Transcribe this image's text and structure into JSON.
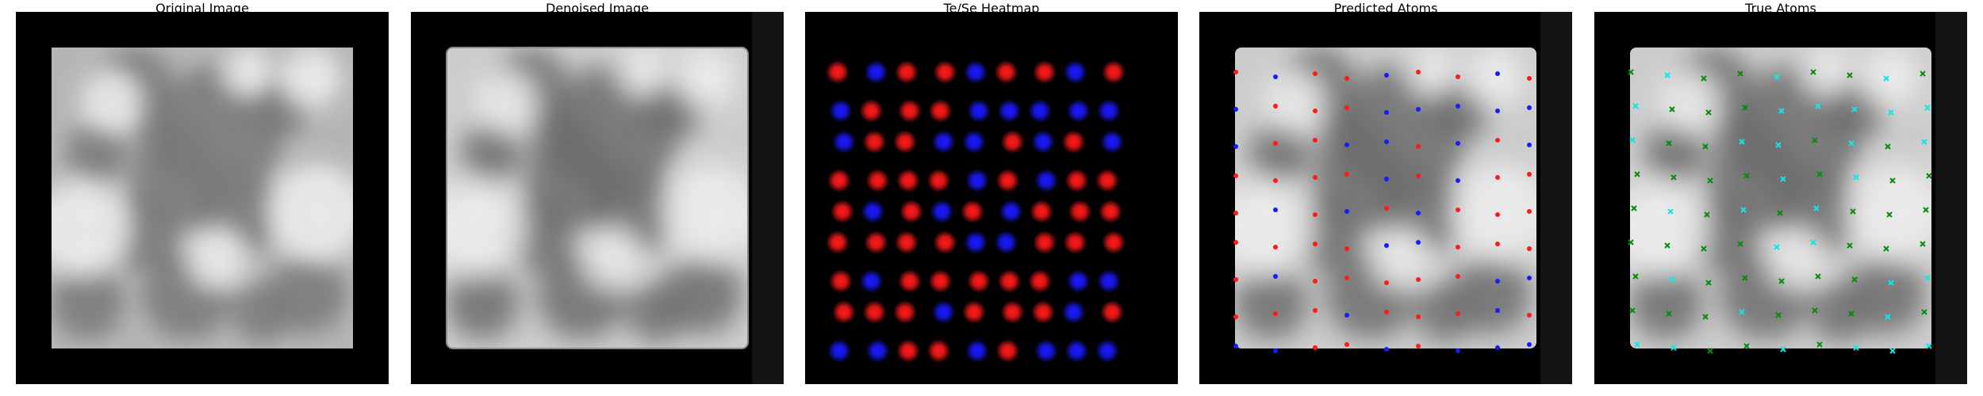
{
  "panels": [
    {
      "title": "Original Image"
    },
    {
      "title": "Denoised Image"
    },
    {
      "title": "Te/Se Heatmap"
    },
    {
      "title": "Predicted Atoms"
    },
    {
      "title": "True Atoms"
    }
  ],
  "colors": {
    "te": "#ff1a1a",
    "se": "#1a1aff",
    "true_te": "#0a8a0a",
    "true_se": "#10e6e6",
    "background": "#000000"
  }
}
